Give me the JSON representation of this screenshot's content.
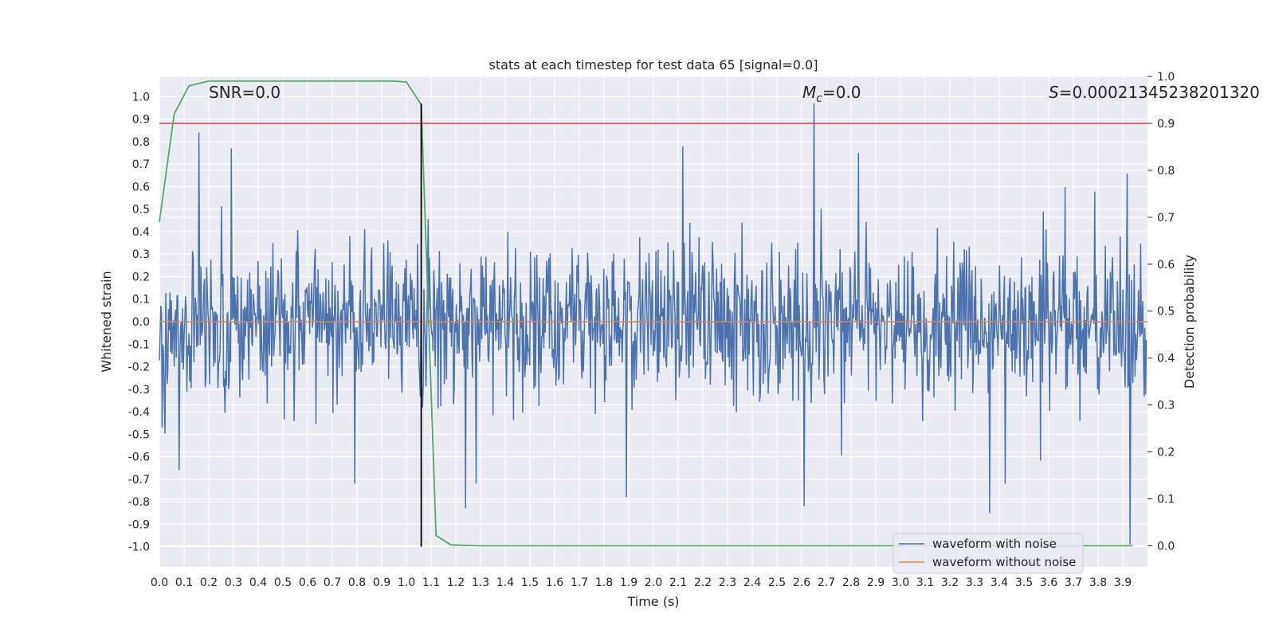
{
  "chart_data": {
    "type": "line",
    "title": "stats at each timestep for test data 65 [signal=0.0]",
    "xlabel": "Time (s)",
    "ylabel": "Whitened strain",
    "y2label": "Detection probability",
    "xlim": [
      0.0,
      4.0
    ],
    "ylim": [
      -1.09,
      1.09
    ],
    "y2lim": [
      -0.045,
      1.0
    ],
    "xticks": [
      "0.0",
      "0.1",
      "0.2",
      "0.3",
      "0.4",
      "0.5",
      "0.6",
      "0.7",
      "0.8",
      "0.9",
      "1.0",
      "1.1",
      "1.2",
      "1.3",
      "1.4",
      "1.5",
      "1.6",
      "1.7",
      "1.8",
      "1.9",
      "2.0",
      "2.1",
      "2.2",
      "2.3",
      "2.4",
      "2.5",
      "2.6",
      "2.7",
      "2.8",
      "2.9",
      "3.0",
      "3.1",
      "3.2",
      "3.3",
      "3.4",
      "3.5",
      "3.6",
      "3.7",
      "3.8",
      "3.9"
    ],
    "yticks": [
      "1.0",
      "0.9",
      "0.8",
      "0.7",
      "0.6",
      "0.5",
      "0.4",
      "0.3",
      "0.2",
      "0.1",
      "0.0",
      "-0.1",
      "-0.2",
      "-0.3",
      "-0.4",
      "-0.5",
      "-0.6",
      "-0.7",
      "-0.8",
      "-0.9",
      "-1.0"
    ],
    "y2ticks": [
      "1.0",
      "0.9",
      "0.8",
      "0.7",
      "0.6",
      "0.5",
      "0.4",
      "0.3",
      "0.2",
      "0.1",
      "0.0"
    ],
    "annotations": {
      "snr": "SNR=0.0",
      "mc_symbol": "M",
      "mc_sub": "c",
      "mc_value": "=0.0",
      "s_symbol": "S",
      "s_value": "=0.00021345238201320"
    },
    "legend": {
      "placement": "lower right",
      "entries": [
        "waveform with noise",
        "waveform without noise"
      ]
    },
    "colors": {
      "noise": "#4c72b0",
      "clean": "#dd8452",
      "probability": "#55a868",
      "threshold": "#c44e52",
      "marker": "#000000",
      "plot_bg": "#eaeaf2",
      "grid": "#ffffff"
    },
    "series": [
      {
        "name": "waveform with noise",
        "generator": "random",
        "seed": 65,
        "samples": 1400,
        "spikes": [
          {
            "x": 0.16,
            "y": 0.84
          },
          {
            "x": 0.29,
            "y": 0.77
          },
          {
            "x": 0.08,
            "y": -0.66
          },
          {
            "x": 0.79,
            "y": -0.72
          },
          {
            "x": 1.24,
            "y": -0.83
          },
          {
            "x": 1.89,
            "y": -0.78
          },
          {
            "x": 2.12,
            "y": 0.78
          },
          {
            "x": 2.61,
            "y": -0.82
          },
          {
            "x": 2.65,
            "y": 0.97
          },
          {
            "x": 2.83,
            "y": 0.75
          },
          {
            "x": 3.36,
            "y": -0.85
          },
          {
            "x": 3.93,
            "y": -0.99
          }
        ]
      },
      {
        "name": "waveform without noise",
        "x": [
          0.0,
          4.0
        ],
        "y": [
          0.0,
          0.0
        ]
      },
      {
        "name": "detection probability",
        "axis": "right",
        "x": [
          0.0,
          0.06,
          0.12,
          0.2,
          0.4,
          0.8,
          0.95,
          1.0,
          1.06,
          1.12,
          1.18,
          1.3,
          2.0,
          3.0,
          3.94
        ],
        "y": [
          0.69,
          0.92,
          0.98,
          0.99,
          0.99,
          0.99,
          0.99,
          0.988,
          0.94,
          0.022,
          0.002,
          0.0,
          0.0,
          0.0,
          0.0
        ]
      }
    ],
    "threshold_y2": 0.9,
    "marker_x": 1.06,
    "marker_y": [
      -1.0,
      0.97
    ]
  }
}
